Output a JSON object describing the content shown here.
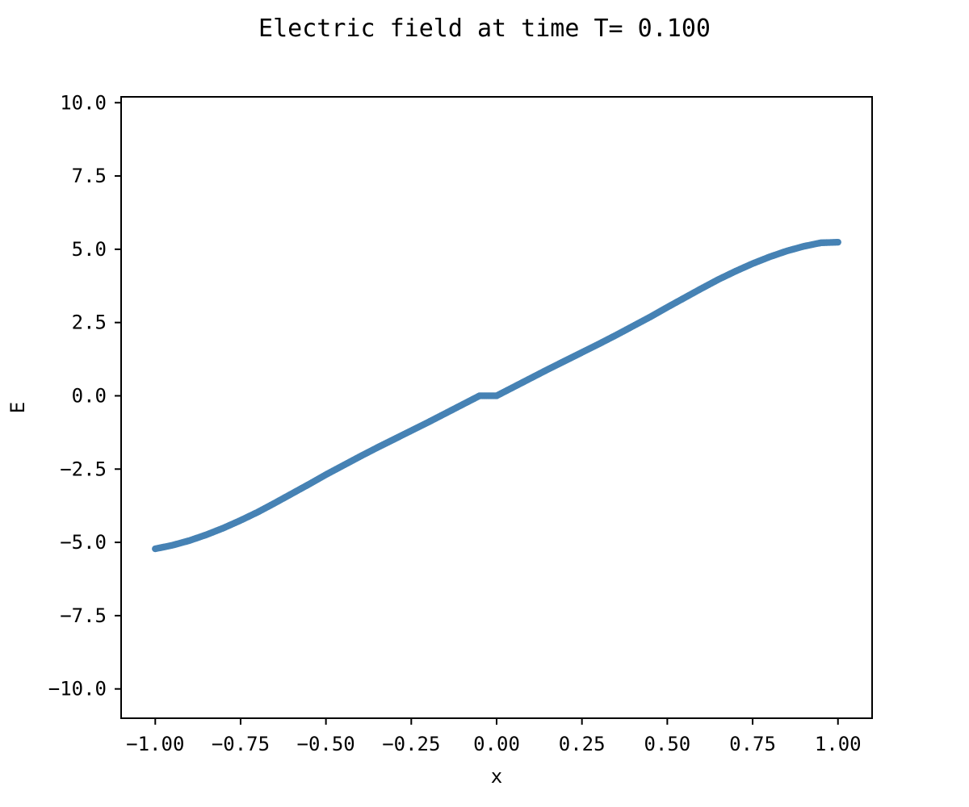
{
  "chart_data": {
    "type": "scatter",
    "title": "Electric field at time T= 0.100",
    "xlabel": "x",
    "ylabel": "E",
    "xlim": [
      -1.1,
      1.1
    ],
    "ylim": [
      -11.0,
      10.2
    ],
    "xticks": [
      -1.0,
      -0.75,
      -0.5,
      -0.25,
      0.0,
      0.25,
      0.5,
      0.75,
      1.0
    ],
    "xtick_labels": [
      "−1.00",
      "−0.75",
      "−0.50",
      "−0.25",
      "0.00",
      "0.25",
      "0.50",
      "0.75",
      "1.00"
    ],
    "yticks": [
      10.0,
      7.5,
      5.0,
      2.5,
      0.0,
      -2.5,
      -5.0,
      -7.5,
      -10.0
    ],
    "ytick_labels": [
      "10.0",
      "7.5",
      "5.0",
      "2.5",
      "0.0",
      "−2.5",
      "−5.0",
      "−7.5",
      "−10.0"
    ],
    "grid": false,
    "color": "#4682b4",
    "series": [
      {
        "x": [
          -1.0,
          -0.95,
          -0.9,
          -0.85,
          -0.8,
          -0.75,
          -0.7,
          -0.65,
          -0.6,
          -0.55,
          -0.5,
          -0.45,
          -0.4,
          -0.35,
          -0.3,
          -0.25,
          -0.2,
          -0.15,
          -0.1,
          -0.05,
          0.0,
          0.05,
          0.1,
          0.15,
          0.2,
          0.25,
          0.3,
          0.35,
          0.4,
          0.45,
          0.5,
          0.55,
          0.6,
          0.65,
          0.7,
          0.75,
          0.8,
          0.85,
          0.9,
          0.95,
          1.0
        ],
        "y": [
          -5.22,
          -5.1,
          -4.94,
          -4.74,
          -4.51,
          -4.25,
          -3.97,
          -3.66,
          -3.34,
          -3.02,
          -2.69,
          -2.38,
          -2.07,
          -1.77,
          -1.48,
          -1.19,
          -0.9,
          -0.6,
          -0.3,
          0.0,
          0.0,
          0.3,
          0.6,
          0.9,
          1.19,
          1.48,
          1.77,
          2.07,
          2.38,
          2.69,
          3.02,
          3.34,
          3.66,
          3.97,
          4.25,
          4.51,
          4.74,
          4.94,
          5.1,
          5.22,
          5.24
        ]
      }
    ]
  }
}
